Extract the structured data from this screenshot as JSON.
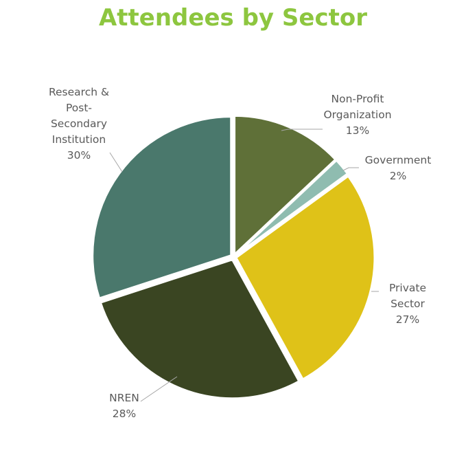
{
  "chart_data": {
    "type": "pie",
    "title": "Attendees by Sector",
    "slices": [
      {
        "name": "Non-Profit Organization",
        "label_lines": [
          "Non-Profit",
          "Organization"
        ],
        "value": 13,
        "value_label": "13%",
        "color": "#5f7038"
      },
      {
        "name": "Government",
        "label_lines": [
          "Government"
        ],
        "value": 2,
        "value_label": "2%",
        "color": "#8fbcb0"
      },
      {
        "name": "Private Sector",
        "label_lines": [
          "Private",
          "Sector"
        ],
        "value": 27,
        "value_label": "27%",
        "color": "#dfc218"
      },
      {
        "name": "NREN",
        "label_lines": [
          "NREN"
        ],
        "value": 28,
        "value_label": "28%",
        "color": "#3a4522"
      },
      {
        "name": "Research & Post-Secondary Institution",
        "label_lines": [
          "Research &",
          "Post-",
          "Secondary",
          "Institution"
        ],
        "value": 30,
        "value_label": "30%",
        "color": "#4a786c"
      }
    ]
  }
}
